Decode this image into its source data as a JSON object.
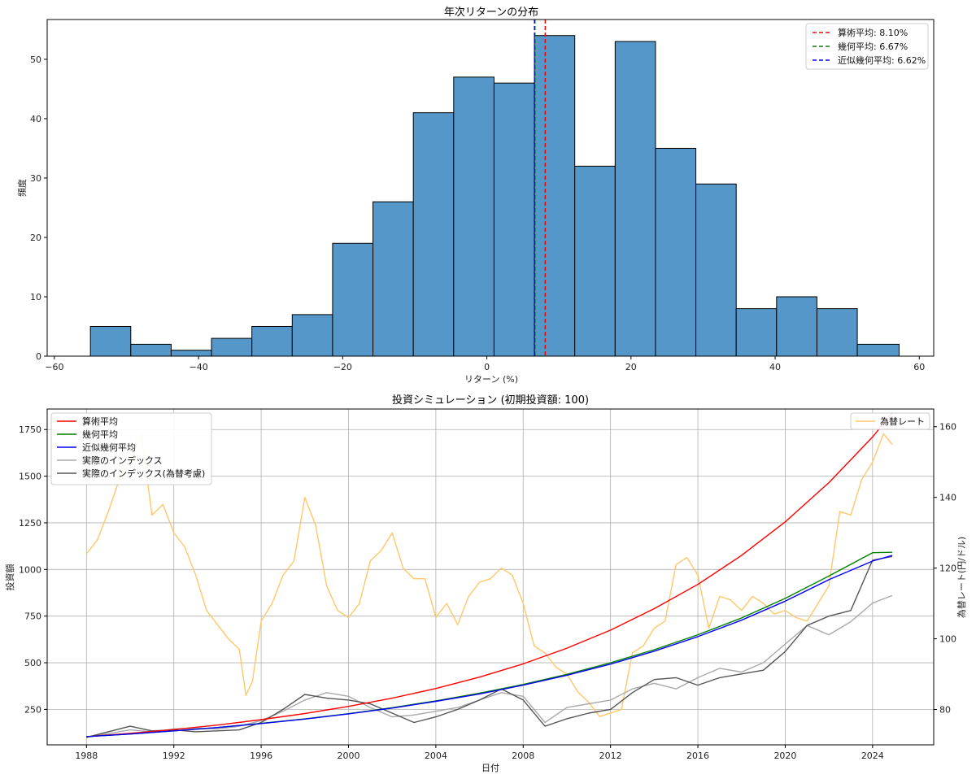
{
  "chart_data": [
    {
      "type": "bar",
      "subtype": "histogram",
      "title": "年次リターンの分布",
      "xlabel": "リターン (%)",
      "ylabel": "頻度",
      "xlim": [
        -61,
        62
      ],
      "ylim": [
        0,
        56.7
      ],
      "xticks": [
        -60,
        -40,
        -20,
        0,
        20,
        40,
        60
      ],
      "yticks": [
        0,
        10,
        20,
        30,
        40,
        50
      ],
      "bin_edges": [
        -55.0,
        -49.4,
        -43.8,
        -38.2,
        -32.6,
        -27.0,
        -21.4,
        -15.8,
        -10.2,
        -4.6,
        1.0,
        6.6,
        12.2,
        17.8,
        23.4,
        29.0,
        34.6,
        40.2,
        45.8,
        51.4,
        57.2
      ],
      "counts": [
        5,
        2,
        1,
        3,
        5,
        7,
        19,
        26,
        41,
        47,
        46,
        54,
        32,
        53,
        35,
        29,
        8,
        10,
        8,
        2
      ],
      "bar_color": "#5497c8",
      "vlines": [
        {
          "label": "算術平均: 8.10%",
          "value": 8.1,
          "color": "#ff0000"
        },
        {
          "label": "幾何平均: 6.67%",
          "value": 6.67,
          "color": "#008000"
        },
        {
          "label": "近似幾何平均: 6.62%",
          "value": 6.62,
          "color": "#0000ff"
        }
      ],
      "legend_position": "top-right"
    },
    {
      "type": "line",
      "title": "投資シミュレーション (初期投資額: 100)",
      "xlabel": "日付",
      "ylabel": "投資額",
      "ylabel_right": "為替レート(円/ドル)",
      "xlim": [
        1986.2,
        2026.8
      ],
      "ylim": [
        60,
        1860
      ],
      "ylim_right": [
        70,
        165
      ],
      "xticks": [
        1988,
        1992,
        1996,
        2000,
        2004,
        2008,
        2012,
        2016,
        2020,
        2024
      ],
      "yticks": [
        250,
        500,
        750,
        1000,
        1250,
        1500,
        1750
      ],
      "yticks_right": [
        80,
        100,
        120,
        140,
        160
      ],
      "series": [
        {
          "name": "算術平均",
          "color": "#ff0000",
          "axis": "left",
          "x": [
            1988,
            1990,
            1992,
            1994,
            1996,
            1998,
            2000,
            2002,
            2004,
            2006,
            2008,
            2010,
            2012,
            2014,
            2016,
            2018,
            2020,
            2022,
            2024,
            2024.9
          ],
          "values": [
            104,
            122,
            142,
            166,
            195,
            228,
            266,
            310,
            362,
            423,
            494,
            578,
            675,
            790,
            920,
            1075,
            1255,
            1465,
            1710,
            1840
          ]
        },
        {
          "name": "幾何平均",
          "color": "#008000",
          "axis": "left",
          "x": [
            1988,
            1990,
            1992,
            1994,
            1996,
            1998,
            2000,
            2002,
            2004,
            2006,
            2008,
            2010,
            2012,
            2014,
            2016,
            2018,
            2020,
            2022,
            2024,
            2024.9
          ],
          "values": [
            104,
            118,
            135,
            153,
            175,
            199,
            227,
            259,
            296,
            337,
            384,
            438,
            500,
            570,
            650,
            740,
            845,
            965,
            1090,
            1092
          ]
        },
        {
          "name": "近似幾何平均",
          "color": "#0000ff",
          "axis": "left",
          "x": [
            1988,
            1990,
            1992,
            1994,
            1996,
            1998,
            2000,
            2002,
            2004,
            2006,
            2008,
            2010,
            2012,
            2014,
            2016,
            2018,
            2020,
            2022,
            2024,
            2024.9
          ],
          "values": [
            104,
            118,
            135,
            153,
            174,
            198,
            226,
            257,
            293,
            333,
            380,
            433,
            493,
            562,
            640,
            728,
            830,
            945,
            1045,
            1075
          ]
        },
        {
          "name": "実際のインデックス",
          "color": "#a9a9a9",
          "axis": "left",
          "x": [
            1988,
            1989,
            1990,
            1991,
            1992,
            1993,
            1994,
            1995,
            1996,
            1997,
            1998,
            1999,
            2000,
            2001,
            2002,
            2003,
            2004,
            2005,
            2006,
            2007,
            2008,
            2009,
            2010,
            2011,
            2012,
            2013,
            2014,
            2015,
            2016,
            2017,
            2018,
            2019,
            2020,
            2021,
            2022,
            2023,
            2024,
            2024.9
          ],
          "values": [
            100,
            120,
            140,
            130,
            145,
            150,
            145,
            160,
            190,
            240,
            300,
            340,
            320,
            260,
            210,
            220,
            240,
            260,
            300,
            340,
            320,
            180,
            260,
            280,
            300,
            360,
            390,
            360,
            420,
            470,
            450,
            500,
            600,
            700,
            650,
            720,
            820,
            860
          ]
        },
        {
          "name": "実際のインデックス(為替考慮)",
          "color": "#555555",
          "axis": "left",
          "x": [
            1988,
            1989,
            1990,
            1991,
            1992,
            1993,
            1994,
            1995,
            1996,
            1997,
            1998,
            1999,
            2000,
            2001,
            2002,
            2003,
            2004,
            2005,
            2006,
            2007,
            2008,
            2009,
            2010,
            2011,
            2012,
            2013,
            2014,
            2015,
            2016,
            2017,
            2018,
            2019,
            2020,
            2021,
            2022,
            2023,
            2024,
            2024.9
          ],
          "values": [
            100,
            130,
            160,
            135,
            140,
            130,
            135,
            140,
            180,
            250,
            330,
            310,
            300,
            280,
            230,
            180,
            210,
            250,
            300,
            360,
            300,
            160,
            200,
            230,
            250,
            340,
            410,
            420,
            380,
            420,
            440,
            460,
            560,
            700,
            750,
            780,
            1050,
            1070
          ]
        },
        {
          "name": "為替レート",
          "color": "#ffc76a",
          "axis": "right",
          "x": [
            1988,
            1988.5,
            1989,
            1989.5,
            1990,
            1990.5,
            1991,
            1991.5,
            1992,
            1992.5,
            1993,
            1993.5,
            1994,
            1994.5,
            1995,
            1995.3,
            1995.6,
            1996,
            1996.5,
            1997,
            1997.5,
            1998,
            1998.5,
            1999,
            1999.5,
            2000,
            2000.5,
            2001,
            2001.5,
            2002,
            2002.5,
            2003,
            2003.5,
            2004,
            2004.5,
            2005,
            2005.5,
            2006,
            2006.5,
            2007,
            2007.5,
            2008,
            2008.5,
            2009,
            2009.5,
            2010,
            2010.5,
            2011,
            2011.5,
            2012,
            2012.5,
            2013,
            2013.5,
            2014,
            2014.5,
            2015,
            2015.5,
            2016,
            2016.5,
            2017,
            2017.5,
            2018,
            2018.5,
            2019,
            2019.5,
            2020,
            2020.5,
            2021,
            2021.5,
            2022,
            2022.5,
            2023,
            2023.5,
            2024,
            2024.5,
            2024.9
          ],
          "values": [
            124,
            128,
            136,
            145,
            150,
            158,
            135,
            138,
            130,
            126,
            118,
            108,
            104,
            100,
            97,
            84,
            88,
            105,
            110,
            118,
            122,
            140,
            132,
            115,
            108,
            106,
            110,
            122,
            125,
            130,
            120,
            117,
            117,
            106,
            110,
            104,
            112,
            116,
            117,
            120,
            118,
            110,
            98,
            96,
            92,
            90,
            85,
            82,
            78,
            79,
            80,
            96,
            98,
            103,
            105,
            121,
            123,
            118,
            103,
            112,
            111,
            108,
            112,
            110,
            107,
            108,
            106,
            105,
            110,
            115,
            136,
            135,
            145,
            150,
            158,
            155
          ]
        }
      ],
      "legend_position": "top-left",
      "legend_right_position": "top-right",
      "grid": true
    }
  ]
}
